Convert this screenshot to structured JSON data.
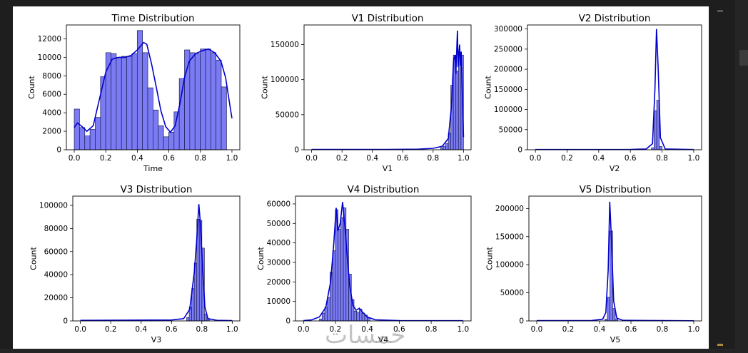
{
  "watermark": "خمسات",
  "colors": {
    "bar_fill": "#7b7bf3",
    "bar_edge": "#1f1f5a",
    "kde_line": "#0000cc"
  },
  "chart_data": [
    {
      "type": "bar",
      "title": "Time Distribution",
      "xlabel": "Time",
      "ylabel": "Count",
      "xlim": [
        -0.05,
        1.05
      ],
      "ylim": [
        0,
        13500
      ],
      "xticks": [
        "0.0",
        "0.2",
        "0.4",
        "0.6",
        "0.8",
        "1.0"
      ],
      "xtick_values": [
        0,
        0.2,
        0.4,
        0.6,
        0.8,
        1.0
      ],
      "yticks": [
        "0",
        "2000",
        "4000",
        "6000",
        "8000",
        "10000",
        "12000"
      ],
      "ytick_values": [
        0,
        2000,
        4000,
        6000,
        8000,
        10000,
        12000
      ],
      "bin_start": 0,
      "bin_width": 0.0333,
      "values": [
        4400,
        2400,
        1500,
        2200,
        3500,
        7900,
        10500,
        10400,
        10000,
        10100,
        10100,
        10400,
        12900,
        10500,
        6700,
        4300,
        2600,
        1400,
        1900,
        4100,
        7700,
        10800,
        10500,
        10400,
        10900,
        10900,
        10500,
        9700,
        6800
      ],
      "kde": [
        [
          0,
          2400
        ],
        [
          0.02,
          2900
        ],
        [
          0.05,
          2500
        ],
        [
          0.08,
          2000
        ],
        [
          0.12,
          2600
        ],
        [
          0.16,
          5500
        ],
        [
          0.2,
          8400
        ],
        [
          0.24,
          9800
        ],
        [
          0.28,
          10000
        ],
        [
          0.32,
          10000
        ],
        [
          0.36,
          10200
        ],
        [
          0.4,
          10800
        ],
        [
          0.44,
          11600
        ],
        [
          0.46,
          11400
        ],
        [
          0.49,
          9300
        ],
        [
          0.52,
          6800
        ],
        [
          0.55,
          4200
        ],
        [
          0.58,
          2500
        ],
        [
          0.61,
          1900
        ],
        [
          0.64,
          2600
        ],
        [
          0.67,
          5000
        ],
        [
          0.7,
          7900
        ],
        [
          0.73,
          9600
        ],
        [
          0.77,
          10400
        ],
        [
          0.81,
          10700
        ],
        [
          0.85,
          10900
        ],
        [
          0.89,
          10500
        ],
        [
          0.93,
          9600
        ],
        [
          0.96,
          7800
        ],
        [
          0.99,
          4500
        ],
        [
          1.0,
          3400
        ]
      ]
    },
    {
      "type": "bar",
      "title": "V1 Distribution",
      "xlabel": "V1",
      "ylabel": "Count",
      "xlim": [
        -0.05,
        1.05
      ],
      "ylim": [
        0,
        178000
      ],
      "xticks": [
        "0.0",
        "0.2",
        "0.4",
        "0.6",
        "0.8",
        "1.0"
      ],
      "xtick_values": [
        0,
        0.2,
        0.4,
        0.6,
        0.8,
        1.0
      ],
      "yticks": [
        "0",
        "50000",
        "100000",
        "150000"
      ],
      "ytick_values": [
        0,
        50000,
        100000,
        150000
      ],
      "bars": [
        [
          0.85,
          0.0166,
          3000
        ],
        [
          0.8666,
          0.0166,
          5000
        ],
        [
          0.8833,
          0.0166,
          9000
        ],
        [
          0.9,
          0.0166,
          24000
        ],
        [
          0.9166,
          0.0166,
          92000
        ],
        [
          0.9333,
          0.0166,
          135000
        ],
        [
          0.95,
          0.0166,
          112000
        ],
        [
          0.9666,
          0.0166,
          138000
        ],
        [
          0.9833,
          0.0166,
          135000
        ]
      ],
      "kde": [
        [
          0,
          400
        ],
        [
          0.5,
          500
        ],
        [
          0.7,
          800
        ],
        [
          0.8,
          2000
        ],
        [
          0.86,
          5000
        ],
        [
          0.9,
          16000
        ],
        [
          0.92,
          60000
        ],
        [
          0.935,
          128000
        ],
        [
          0.945,
          135000
        ],
        [
          0.95,
          108000
        ],
        [
          0.96,
          170000
        ],
        [
          0.965,
          118000
        ],
        [
          0.97,
          138000
        ],
        [
          0.975,
          150000
        ],
        [
          0.98,
          120000
        ],
        [
          0.985,
          140000
        ],
        [
          0.99,
          100000
        ],
        [
          1.0,
          18000
        ]
      ]
    },
    {
      "type": "bar",
      "title": "V2 Distribution",
      "xlabel": "V2",
      "ylabel": "Count",
      "xlim": [
        -0.05,
        1.05
      ],
      "ylim": [
        0,
        310000
      ],
      "xticks": [
        "0.0",
        "0.2",
        "0.4",
        "0.6",
        "0.8",
        "1.0"
      ],
      "xtick_values": [
        0,
        0.2,
        0.4,
        0.6,
        0.8,
        1.0
      ],
      "yticks": [
        "0",
        "50000",
        "100000",
        "150000",
        "200000",
        "250000",
        "300000"
      ],
      "ytick_values": [
        0,
        50000,
        100000,
        150000,
        200000,
        250000,
        300000
      ],
      "bars": [
        [
          0.7333,
          0.0166,
          5000
        ],
        [
          0.75,
          0.0166,
          97000
        ],
        [
          0.7666,
          0.0166,
          123000
        ],
        [
          0.7833,
          0.0166,
          8000
        ]
      ],
      "kde": [
        [
          0,
          500
        ],
        [
          0.6,
          800
        ],
        [
          0.7,
          2000
        ],
        [
          0.74,
          15000
        ],
        [
          0.755,
          150000
        ],
        [
          0.765,
          300000
        ],
        [
          0.775,
          210000
        ],
        [
          0.79,
          30000
        ],
        [
          0.82,
          2000
        ],
        [
          1.0,
          500
        ]
      ]
    },
    {
      "type": "bar",
      "title": "V3 Distribution",
      "xlabel": "V3",
      "ylabel": "Count",
      "xlim": [
        -0.05,
        1.05
      ],
      "ylim": [
        0,
        108000
      ],
      "xticks": [
        "0.0",
        "0.2",
        "0.4",
        "0.6",
        "0.8",
        "1.0"
      ],
      "xtick_values": [
        0,
        0.2,
        0.4,
        0.6,
        0.8,
        1.0
      ],
      "yticks": [
        "0",
        "20000",
        "40000",
        "60000",
        "80000",
        "100000"
      ],
      "ytick_values": [
        0,
        20000,
        40000,
        60000,
        80000,
        100000
      ],
      "bars": [
        [
          0.7,
          0.0166,
          3000
        ],
        [
          0.7166,
          0.0166,
          12000
        ],
        [
          0.7333,
          0.0166,
          28000
        ],
        [
          0.75,
          0.0166,
          50000
        ],
        [
          0.7666,
          0.0166,
          88000
        ],
        [
          0.7833,
          0.0166,
          87000
        ],
        [
          0.8,
          0.0166,
          63000
        ],
        [
          0.8166,
          0.0166,
          6000
        ],
        [
          0.8333,
          0.0166,
          1500
        ]
      ],
      "kde": [
        [
          0,
          500
        ],
        [
          0.6,
          800
        ],
        [
          0.68,
          2000
        ],
        [
          0.72,
          10000
        ],
        [
          0.75,
          42000
        ],
        [
          0.765,
          68000
        ],
        [
          0.78,
          101000
        ],
        [
          0.79,
          85000
        ],
        [
          0.805,
          45000
        ],
        [
          0.82,
          12000
        ],
        [
          0.84,
          2000
        ],
        [
          0.9,
          500
        ],
        [
          1.0,
          300
        ]
      ]
    },
    {
      "type": "bar",
      "title": "V4 Distribution",
      "xlabel": "V4",
      "ylabel": "Count",
      "xlim": [
        -0.05,
        1.05
      ],
      "ylim": [
        0,
        64000
      ],
      "xticks": [
        "0.0",
        "0.2",
        "0.4",
        "0.6",
        "0.8",
        "1.0"
      ],
      "xtick_values": [
        0,
        0.2,
        0.4,
        0.6,
        0.8,
        1.0
      ],
      "yticks": [
        "0",
        "10000",
        "20000",
        "30000",
        "40000",
        "50000",
        "60000"
      ],
      "ytick_values": [
        0,
        10000,
        20000,
        30000,
        40000,
        50000,
        60000
      ],
      "bars": [
        [
          0.1,
          0.0166,
          1000
        ],
        [
          0.1166,
          0.0166,
          4000
        ],
        [
          0.1333,
          0.0166,
          7000
        ],
        [
          0.15,
          0.0166,
          12000
        ],
        [
          0.1666,
          0.0166,
          25000
        ],
        [
          0.1833,
          0.0166,
          36000
        ],
        [
          0.2,
          0.0166,
          57000
        ],
        [
          0.2166,
          0.0166,
          47000
        ],
        [
          0.2333,
          0.0166,
          53000
        ],
        [
          0.25,
          0.0166,
          58000
        ],
        [
          0.2666,
          0.0166,
          47000
        ],
        [
          0.2833,
          0.0166,
          24000
        ],
        [
          0.3,
          0.0166,
          11000
        ],
        [
          0.3166,
          0.0166,
          5000
        ],
        [
          0.3333,
          0.0166,
          4500
        ],
        [
          0.35,
          0.0166,
          6000
        ],
        [
          0.3666,
          0.0166,
          4000
        ],
        [
          0.3833,
          0.0166,
          3000
        ],
        [
          0.4,
          0.0166,
          1500
        ]
      ],
      "kde": [
        [
          0,
          200
        ],
        [
          0.05,
          500
        ],
        [
          0.1,
          2000
        ],
        [
          0.14,
          7000
        ],
        [
          0.17,
          20000
        ],
        [
          0.19,
          40000
        ],
        [
          0.205,
          58000
        ],
        [
          0.215,
          46000
        ],
        [
          0.23,
          50000
        ],
        [
          0.245,
          61000
        ],
        [
          0.26,
          48000
        ],
        [
          0.275,
          32000
        ],
        [
          0.29,
          18000
        ],
        [
          0.31,
          8000
        ],
        [
          0.33,
          5500
        ],
        [
          0.35,
          6500
        ],
        [
          0.37,
          4500
        ],
        [
          0.4,
          2000
        ],
        [
          0.45,
          600
        ],
        [
          0.6,
          200
        ],
        [
          1.0,
          100
        ]
      ]
    },
    {
      "type": "bar",
      "title": "V5 Distribution",
      "xlabel": "V5",
      "ylabel": "Count",
      "xlim": [
        -0.05,
        1.05
      ],
      "ylim": [
        0,
        222000
      ],
      "xticks": [
        "0.0",
        "0.2",
        "0.4",
        "0.6",
        "0.8",
        "1.0"
      ],
      "xtick_values": [
        0,
        0.2,
        0.4,
        0.6,
        0.8,
        1.0
      ],
      "yticks": [
        "0",
        "50000",
        "100000",
        "150000",
        "200000"
      ],
      "ytick_values": [
        0,
        50000,
        100000,
        150000,
        200000
      ],
      "bars": [
        [
          0.4333,
          0.0166,
          3000
        ],
        [
          0.45,
          0.0166,
          42000
        ],
        [
          0.4666,
          0.0166,
          160000
        ],
        [
          0.4833,
          0.0166,
          22000
        ],
        [
          0.5,
          0.0166,
          3000
        ]
      ],
      "kde": [
        [
          0,
          500
        ],
        [
          0.35,
          800
        ],
        [
          0.42,
          3000
        ],
        [
          0.44,
          15000
        ],
        [
          0.455,
          90000
        ],
        [
          0.465,
          212000
        ],
        [
          0.475,
          150000
        ],
        [
          0.49,
          35000
        ],
        [
          0.51,
          5000
        ],
        [
          0.55,
          1000
        ],
        [
          1.0,
          300
        ]
      ]
    }
  ]
}
